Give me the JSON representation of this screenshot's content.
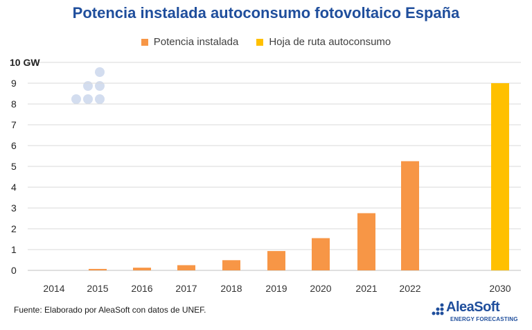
{
  "chart_data": {
    "type": "bar",
    "title": "Potencia instalada autoconsumo fotovoltaico España",
    "categories": [
      "2014",
      "2015",
      "2016",
      "2017",
      "2018",
      "2019",
      "2020",
      "2021",
      "2022",
      "2030"
    ],
    "series": [
      {
        "name": "Potencia instalada",
        "color": "#f79646",
        "values": [
          0.0,
          0.07,
          0.13,
          0.25,
          0.49,
          0.93,
          1.55,
          2.75,
          5.25,
          null
        ]
      },
      {
        "name": "Hoja de ruta autoconsumo",
        "color": "#ffc000",
        "values": [
          null,
          null,
          null,
          null,
          null,
          null,
          null,
          null,
          null,
          9.0
        ]
      }
    ],
    "ylim": [
      0,
      10
    ],
    "yticks": [
      "0",
      "1",
      "2",
      "3",
      "4",
      "5",
      "6",
      "7",
      "8",
      "9",
      "10 GW"
    ],
    "grid": true,
    "legend_position": "top"
  },
  "footer": {
    "source": "Fuente: Elaborado por AleaSoft con datos de UNEF."
  },
  "logo": {
    "name": "AleaSoft",
    "tagline": "ENERGY FORECASTING",
    "color": "#1f4e9c"
  }
}
